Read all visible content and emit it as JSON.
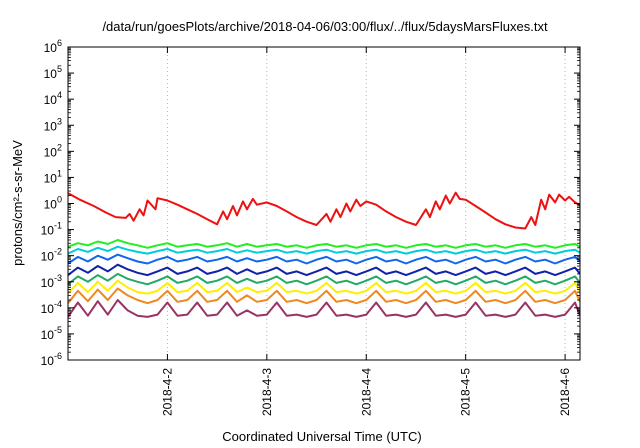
{
  "chart_data": {
    "type": "line",
    "title": "/data/run/goesPlots/archive/2018-04-06/03:00/flux/../flux/5daysMarsFluxes.txt",
    "xlabel": "Coordinated Universal Time (UTC)",
    "ylabel": "protons/cm²-s-sr-MeV",
    "xlim": [
      1.0,
      6.15
    ],
    "ylim_log10": [
      -6,
      6
    ],
    "log_y": true,
    "grid": true,
    "x_ticks": [
      {
        "value": 2,
        "label": "2018-4-2"
      },
      {
        "value": 3,
        "label": "2018-4-3"
      },
      {
        "value": 4,
        "label": "2018-4-4"
      },
      {
        "value": 5,
        "label": "2018-4-5"
      },
      {
        "value": 6,
        "label": "2018-4-6"
      }
    ],
    "y_ticks": [
      {
        "exp": -6,
        "base": "10",
        "sup": "-6"
      },
      {
        "exp": -5,
        "base": "10",
        "sup": "-5"
      },
      {
        "exp": -4,
        "base": "10",
        "sup": "-4"
      },
      {
        "exp": -3,
        "base": "10",
        "sup": "-3"
      },
      {
        "exp": -2,
        "base": "10",
        "sup": "-2"
      },
      {
        "exp": -1,
        "base": "10",
        "sup": "-1"
      },
      {
        "exp": 0,
        "base": "10",
        "sup": "0"
      },
      {
        "exp": 1,
        "base": "10",
        "sup": "1"
      },
      {
        "exp": 2,
        "base": "10",
        "sup": "2"
      },
      {
        "exp": 3,
        "base": "10",
        "sup": "3"
      },
      {
        "exp": 4,
        "base": "10",
        "sup": "4"
      },
      {
        "exp": 5,
        "base": "10",
        "sup": "5"
      },
      {
        "exp": 6,
        "base": "10",
        "sup": "6"
      }
    ],
    "series": [
      {
        "color": "#ee1111",
        "x": [
          1.0,
          1.12,
          1.26,
          1.38,
          1.48,
          1.58,
          1.62,
          1.66,
          1.72,
          1.76,
          1.8,
          1.88,
          1.9,
          2.0,
          2.1,
          2.2,
          2.3,
          2.4,
          2.5,
          2.56,
          2.6,
          2.66,
          2.7,
          2.76,
          2.8,
          2.86,
          2.9,
          3.0,
          3.1,
          3.2,
          3.3,
          3.4,
          3.5,
          3.6,
          3.64,
          3.7,
          3.74,
          3.8,
          3.84,
          3.9,
          3.94,
          4.0,
          4.1,
          4.2,
          4.3,
          4.4,
          4.5,
          4.6,
          4.64,
          4.7,
          4.74,
          4.8,
          4.84,
          4.9,
          4.94,
          5.0,
          5.1,
          5.2,
          5.3,
          5.4,
          5.5,
          5.6,
          5.66,
          5.7,
          5.76,
          5.8,
          5.84,
          5.9,
          5.94,
          6.0,
          6.04,
          6.1,
          6.15
        ],
        "y": [
          2.5,
          1.4,
          0.8,
          0.45,
          0.3,
          0.28,
          0.4,
          0.22,
          0.6,
          0.35,
          1.3,
          0.6,
          1.6,
          1.3,
          0.9,
          0.6,
          0.4,
          0.25,
          0.16,
          0.5,
          0.25,
          0.8,
          0.35,
          1.2,
          0.6,
          1.5,
          0.9,
          1.1,
          0.8,
          0.5,
          0.3,
          0.2,
          0.15,
          0.4,
          0.2,
          0.6,
          0.3,
          1.0,
          0.5,
          1.4,
          0.8,
          1.2,
          0.9,
          0.5,
          0.3,
          0.2,
          0.15,
          0.6,
          0.3,
          1.2,
          0.6,
          2.0,
          1.0,
          2.6,
          1.5,
          1.4,
          0.8,
          0.45,
          0.25,
          0.16,
          0.12,
          0.11,
          0.3,
          0.15,
          1.4,
          0.6,
          2.2,
          1.1,
          2.2,
          1.3,
          1.8,
          1.1,
          0.85
        ]
      },
      {
        "color": "#22ee22",
        "x": [
          1.0,
          1.1,
          1.2,
          1.3,
          1.4,
          1.5,
          1.6,
          1.7,
          1.8,
          1.9,
          2.0,
          2.1,
          2.2,
          2.3,
          2.4,
          2.5,
          2.6,
          2.7,
          2.8,
          2.9,
          3.0,
          3.1,
          3.2,
          3.3,
          3.4,
          3.5,
          3.6,
          3.7,
          3.8,
          3.9,
          4.0,
          4.1,
          4.2,
          4.3,
          4.4,
          4.5,
          4.6,
          4.7,
          4.8,
          4.9,
          5.0,
          5.1,
          5.2,
          5.3,
          5.4,
          5.5,
          5.6,
          5.7,
          5.8,
          5.9,
          6.0,
          6.1,
          6.15
        ],
        "y": [
          0.022,
          0.03,
          0.025,
          0.035,
          0.028,
          0.04,
          0.03,
          0.025,
          0.02,
          0.025,
          0.03,
          0.022,
          0.025,
          0.028,
          0.022,
          0.025,
          0.03,
          0.022,
          0.028,
          0.022,
          0.025,
          0.028,
          0.022,
          0.025,
          0.02,
          0.025,
          0.028,
          0.022,
          0.025,
          0.02,
          0.025,
          0.028,
          0.022,
          0.025,
          0.02,
          0.025,
          0.028,
          0.022,
          0.025,
          0.02,
          0.025,
          0.028,
          0.022,
          0.025,
          0.02,
          0.025,
          0.028,
          0.022,
          0.025,
          0.02,
          0.025,
          0.028,
          0.022
        ]
      },
      {
        "color": "#00ccdd",
        "x": [
          1.0,
          1.1,
          1.2,
          1.3,
          1.4,
          1.5,
          1.6,
          1.7,
          1.8,
          1.9,
          2.0,
          2.1,
          2.2,
          2.3,
          2.4,
          2.5,
          2.6,
          2.7,
          2.8,
          2.9,
          3.0,
          3.1,
          3.2,
          3.3,
          3.4,
          3.5,
          3.6,
          3.7,
          3.8,
          3.9,
          4.0,
          4.1,
          4.2,
          4.3,
          4.4,
          4.5,
          4.6,
          4.7,
          4.8,
          4.9,
          5.0,
          5.1,
          5.2,
          5.3,
          5.4,
          5.5,
          5.6,
          5.7,
          5.8,
          5.9,
          6.0,
          6.1,
          6.15
        ],
        "y": [
          0.012,
          0.018,
          0.014,
          0.02,
          0.015,
          0.022,
          0.017,
          0.014,
          0.012,
          0.015,
          0.018,
          0.013,
          0.015,
          0.017,
          0.013,
          0.015,
          0.018,
          0.013,
          0.016,
          0.013,
          0.015,
          0.017,
          0.013,
          0.015,
          0.012,
          0.015,
          0.017,
          0.013,
          0.015,
          0.012,
          0.015,
          0.017,
          0.013,
          0.015,
          0.012,
          0.015,
          0.017,
          0.013,
          0.015,
          0.012,
          0.015,
          0.017,
          0.013,
          0.015,
          0.012,
          0.015,
          0.017,
          0.013,
          0.015,
          0.012,
          0.015,
          0.017,
          0.013
        ]
      },
      {
        "color": "#1166ee",
        "x": [
          1.0,
          1.1,
          1.2,
          1.3,
          1.4,
          1.5,
          1.6,
          1.7,
          1.8,
          1.9,
          2.0,
          2.1,
          2.2,
          2.3,
          2.4,
          2.5,
          2.6,
          2.7,
          2.8,
          2.9,
          3.0,
          3.1,
          3.2,
          3.3,
          3.4,
          3.5,
          3.6,
          3.7,
          3.8,
          3.9,
          4.0,
          4.1,
          4.2,
          4.3,
          4.4,
          4.5,
          4.6,
          4.7,
          4.8,
          4.9,
          5.0,
          5.1,
          5.2,
          5.3,
          5.4,
          5.5,
          5.6,
          5.7,
          5.8,
          5.9,
          6.0,
          6.1,
          6.15
        ],
        "y": [
          0.005,
          0.009,
          0.006,
          0.01,
          0.007,
          0.011,
          0.008,
          0.006,
          0.005,
          0.007,
          0.009,
          0.006,
          0.007,
          0.009,
          0.006,
          0.007,
          0.009,
          0.006,
          0.008,
          0.006,
          0.007,
          0.009,
          0.006,
          0.007,
          0.005,
          0.007,
          0.009,
          0.006,
          0.007,
          0.005,
          0.007,
          0.009,
          0.006,
          0.007,
          0.005,
          0.007,
          0.009,
          0.006,
          0.007,
          0.005,
          0.007,
          0.009,
          0.006,
          0.007,
          0.005,
          0.007,
          0.009,
          0.006,
          0.007,
          0.005,
          0.007,
          0.009,
          0.006
        ]
      },
      {
        "color": "#1122aa",
        "x": [
          1.0,
          1.1,
          1.2,
          1.3,
          1.4,
          1.5,
          1.6,
          1.7,
          1.8,
          1.9,
          2.0,
          2.1,
          2.2,
          2.3,
          2.4,
          2.5,
          2.6,
          2.7,
          2.8,
          2.9,
          3.0,
          3.1,
          3.2,
          3.3,
          3.4,
          3.5,
          3.6,
          3.7,
          3.8,
          3.9,
          4.0,
          4.1,
          4.2,
          4.3,
          4.4,
          4.5,
          4.6,
          4.7,
          4.8,
          4.9,
          5.0,
          5.1,
          5.2,
          5.3,
          5.4,
          5.5,
          5.6,
          5.7,
          5.8,
          5.9,
          6.0,
          6.1,
          6.15
        ],
        "y": [
          0.0018,
          0.0035,
          0.0022,
          0.004,
          0.0025,
          0.0045,
          0.003,
          0.0022,
          0.0018,
          0.0025,
          0.0035,
          0.002,
          0.0025,
          0.0035,
          0.002,
          0.0025,
          0.0035,
          0.002,
          0.003,
          0.002,
          0.0025,
          0.0035,
          0.002,
          0.0025,
          0.0018,
          0.0025,
          0.0035,
          0.002,
          0.0025,
          0.0018,
          0.0025,
          0.0035,
          0.002,
          0.0025,
          0.0018,
          0.0025,
          0.0035,
          0.002,
          0.0025,
          0.0018,
          0.0025,
          0.0035,
          0.002,
          0.0025,
          0.0018,
          0.0025,
          0.0035,
          0.002,
          0.0025,
          0.0018,
          0.0025,
          0.0035,
          0.002
        ]
      },
      {
        "color": "#22aa66",
        "x": [
          1.0,
          1.1,
          1.2,
          1.3,
          1.4,
          1.5,
          1.6,
          1.7,
          1.8,
          1.9,
          2.0,
          2.1,
          2.2,
          2.3,
          2.4,
          2.5,
          2.6,
          2.7,
          2.8,
          2.9,
          3.0,
          3.1,
          3.2,
          3.3,
          3.4,
          3.5,
          3.6,
          3.7,
          3.8,
          3.9,
          4.0,
          4.1,
          4.2,
          4.3,
          4.4,
          4.5,
          4.6,
          4.7,
          4.8,
          4.9,
          5.0,
          5.1,
          5.2,
          5.3,
          5.4,
          5.5,
          5.6,
          5.7,
          5.8,
          5.9,
          6.0,
          6.1,
          6.15
        ],
        "y": [
          0.0008,
          0.0016,
          0.001,
          0.0018,
          0.0011,
          0.002,
          0.0013,
          0.001,
          0.0008,
          0.0011,
          0.0016,
          0.0009,
          0.0011,
          0.0016,
          0.0009,
          0.0011,
          0.0016,
          0.0009,
          0.0013,
          0.0009,
          0.0011,
          0.0016,
          0.0009,
          0.0011,
          0.0008,
          0.0011,
          0.0016,
          0.0009,
          0.0011,
          0.0008,
          0.0011,
          0.0016,
          0.0009,
          0.0011,
          0.0008,
          0.0011,
          0.0016,
          0.0009,
          0.0011,
          0.0008,
          0.0011,
          0.0016,
          0.0009,
          0.0011,
          0.0008,
          0.0011,
          0.0016,
          0.0009,
          0.0011,
          0.0008,
          0.0011,
          0.0016,
          0.0009
        ]
      },
      {
        "color": "#ffee00",
        "x": [
          1.0,
          1.1,
          1.2,
          1.3,
          1.4,
          1.5,
          1.6,
          1.7,
          1.8,
          1.9,
          2.0,
          2.1,
          2.2,
          2.3,
          2.4,
          2.5,
          2.6,
          2.7,
          2.8,
          2.9,
          3.0,
          3.1,
          3.2,
          3.3,
          3.4,
          3.5,
          3.6,
          3.7,
          3.8,
          3.9,
          4.0,
          4.1,
          4.2,
          4.3,
          4.4,
          4.5,
          4.6,
          4.7,
          4.8,
          4.9,
          5.0,
          5.1,
          5.2,
          5.3,
          5.4,
          5.5,
          5.6,
          5.7,
          5.8,
          5.9,
          6.0,
          6.1,
          6.15
        ],
        "y": [
          0.00035,
          0.0009,
          0.0004,
          0.001,
          0.00045,
          0.0011,
          0.0006,
          0.0004,
          0.00035,
          0.00045,
          0.0009,
          0.0004,
          0.00045,
          0.0009,
          0.0004,
          0.00045,
          0.0009,
          0.0004,
          0.0006,
          0.0004,
          0.00045,
          0.0009,
          0.0004,
          0.00045,
          0.00035,
          0.00045,
          0.0009,
          0.0004,
          0.00045,
          0.00035,
          0.00045,
          0.0009,
          0.0004,
          0.00045,
          0.00035,
          0.00045,
          0.0009,
          0.0004,
          0.00045,
          0.00035,
          0.00045,
          0.0009,
          0.0004,
          0.00045,
          0.00035,
          0.00045,
          0.0009,
          0.0004,
          0.00045,
          0.00035,
          0.00045,
          0.0009,
          0.0004
        ]
      },
      {
        "color": "#ee8822",
        "x": [
          1.0,
          1.1,
          1.2,
          1.3,
          1.4,
          1.5,
          1.6,
          1.7,
          1.8,
          1.9,
          2.0,
          2.1,
          2.2,
          2.3,
          2.4,
          2.5,
          2.6,
          2.7,
          2.8,
          2.9,
          3.0,
          3.1,
          3.2,
          3.3,
          3.4,
          3.5,
          3.6,
          3.7,
          3.8,
          3.9,
          4.0,
          4.1,
          4.2,
          4.3,
          4.4,
          4.5,
          4.6,
          4.7,
          4.8,
          4.9,
          5.0,
          5.1,
          5.2,
          5.3,
          5.4,
          5.5,
          5.6,
          5.7,
          5.8,
          5.9,
          6.0,
          6.1,
          6.15
        ],
        "y": [
          0.00015,
          0.00045,
          0.00018,
          0.0005,
          0.0002,
          0.00055,
          0.0003,
          0.0002,
          0.00015,
          0.0002,
          0.00045,
          0.00017,
          0.0002,
          0.00045,
          0.00017,
          0.0002,
          0.00045,
          0.00017,
          0.0003,
          0.00017,
          0.0002,
          0.00045,
          0.00017,
          0.0002,
          0.00015,
          0.0002,
          0.00045,
          0.00017,
          0.0002,
          0.00015,
          0.0002,
          0.00045,
          0.00017,
          0.0002,
          0.00015,
          0.0002,
          0.00045,
          0.00017,
          0.0002,
          0.00015,
          0.0002,
          0.00045,
          0.00017,
          0.0002,
          0.00015,
          0.0002,
          0.00045,
          0.00017,
          0.0002,
          0.00015,
          0.0002,
          0.00045,
          0.00017
        ]
      },
      {
        "color": "#993366",
        "x": [
          1.0,
          1.1,
          1.2,
          1.3,
          1.4,
          1.5,
          1.6,
          1.7,
          1.8,
          1.9,
          2.0,
          2.1,
          2.2,
          2.3,
          2.4,
          2.5,
          2.6,
          2.7,
          2.8,
          2.9,
          3.0,
          3.1,
          3.2,
          3.3,
          3.4,
          3.5,
          3.6,
          3.7,
          3.8,
          3.9,
          4.0,
          4.1,
          4.2,
          4.3,
          4.4,
          4.5,
          4.6,
          4.7,
          4.8,
          4.9,
          5.0,
          5.1,
          5.2,
          5.3,
          5.4,
          5.5,
          5.6,
          5.7,
          5.8,
          5.9,
          6.0,
          6.1,
          6.15
        ],
        "y": [
          4.5e-05,
          0.00016,
          5e-05,
          0.00018,
          5.5e-05,
          0.0002,
          8e-05,
          5e-05,
          4.5e-05,
          5.5e-05,
          0.00016,
          5e-05,
          5.5e-05,
          0.00016,
          5e-05,
          5.5e-05,
          0.00016,
          5e-05,
          8e-05,
          5e-05,
          5.5e-05,
          0.00016,
          5e-05,
          5.5e-05,
          4.5e-05,
          5.5e-05,
          0.00016,
          5e-05,
          5.5e-05,
          4.5e-05,
          5.5e-05,
          0.00016,
          5e-05,
          5.5e-05,
          4.5e-05,
          5.5e-05,
          0.00016,
          5e-05,
          5.5e-05,
          4.5e-05,
          5.5e-05,
          0.00016,
          5e-05,
          5.5e-05,
          4.5e-05,
          5.5e-05,
          0.00016,
          5e-05,
          5.5e-05,
          4.5e-05,
          5.5e-05,
          0.00016,
          5e-05
        ]
      }
    ]
  }
}
